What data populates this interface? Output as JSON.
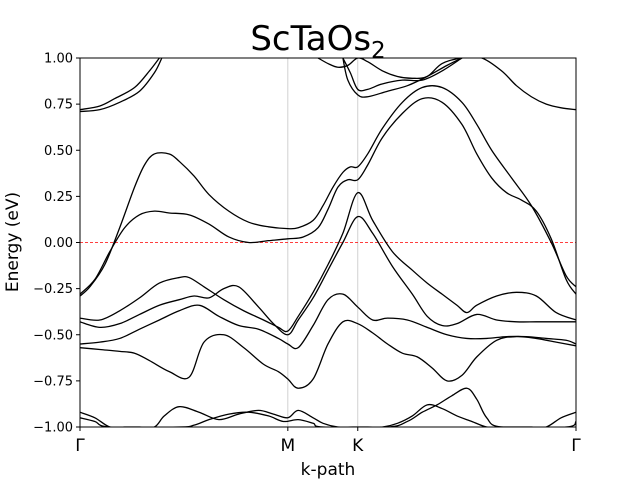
{
  "chart_data": {
    "type": "line",
    "title": "ScTaOs",
    "title_subscript": "2",
    "xlabel": "k-path",
    "ylabel": "Energy (eV)",
    "ylim": [
      -1.0,
      1.0
    ],
    "xlim": [
      0,
      1
    ],
    "yticks": [
      -1.0,
      -0.75,
      -0.5,
      -0.25,
      0.0,
      0.25,
      0.5,
      0.75,
      1.0
    ],
    "ytick_labels": [
      "−1.00",
      "−0.75",
      "−0.50",
      "−0.25",
      "0.00",
      "0.25",
      "0.50",
      "0.75",
      "1.00"
    ],
    "kpoints": [
      {
        "label": "Γ",
        "x": 0.0
      },
      {
        "label": "M",
        "x": 0.419
      },
      {
        "label": "K",
        "x": 0.56
      },
      {
        "label": "Γ",
        "x": 1.0
      }
    ],
    "fermi_level": 0.0,
    "line_color": "#000000",
    "fermi_color": "#ff0000",
    "series": [
      {
        "x": [
          0,
          0.04,
          0.07,
          0.11,
          0.14,
          0.16
        ],
        "values": [
          0.72,
          0.74,
          0.78,
          0.84,
          0.93,
          1.0
        ]
      },
      {
        "x": [
          0,
          0.04,
          0.08,
          0.12,
          0.15,
          0.165
        ],
        "values": [
          0.71,
          0.72,
          0.76,
          0.82,
          0.92,
          1.0
        ]
      },
      {
        "x": [
          0,
          0.02,
          0.05,
          0.08,
          0.11,
          0.13,
          0.15,
          0.18,
          0.2,
          0.23,
          0.26,
          0.3,
          0.34,
          0.38,
          0.419,
          0.44,
          0.47,
          0.49,
          0.51,
          0.53,
          0.545,
          0.56,
          0.58,
          0.61,
          0.65,
          0.69,
          0.73,
          0.77,
          0.8,
          0.83,
          0.87,
          0.91,
          0.95,
          0.98,
          1.0
        ],
        "values": [
          -0.29,
          -0.24,
          -0.12,
          0.08,
          0.3,
          0.42,
          0.48,
          0.48,
          0.44,
          0.36,
          0.26,
          0.17,
          0.11,
          0.085,
          0.075,
          0.08,
          0.12,
          0.2,
          0.3,
          0.38,
          0.41,
          0.41,
          0.48,
          0.62,
          0.76,
          0.84,
          0.84,
          0.76,
          0.64,
          0.5,
          0.35,
          0.2,
          0.0,
          -0.18,
          -0.24
        ]
      },
      {
        "x": [
          0,
          0.03,
          0.06,
          0.09,
          0.12,
          0.15,
          0.18,
          0.22,
          0.26,
          0.3,
          0.34,
          0.38,
          0.419,
          0.45,
          0.48,
          0.5,
          0.52,
          0.54,
          0.56,
          0.58,
          0.61,
          0.65,
          0.69,
          0.73,
          0.77,
          0.8,
          0.83,
          0.86,
          0.89,
          0.92,
          0.95,
          0.98,
          1.0
        ],
        "values": [
          -0.28,
          -0.2,
          -0.05,
          0.08,
          0.15,
          0.17,
          0.16,
          0.15,
          0.1,
          0.03,
          0.0,
          0.01,
          0.02,
          0.03,
          0.08,
          0.18,
          0.3,
          0.34,
          0.34,
          0.42,
          0.57,
          0.7,
          0.78,
          0.76,
          0.64,
          0.48,
          0.35,
          0.27,
          0.23,
          0.17,
          0.02,
          -0.2,
          -0.28
        ]
      },
      {
        "x": [
          0,
          0.04,
          0.08,
          0.12,
          0.16,
          0.2,
          0.22,
          0.25,
          0.29,
          0.33,
          0.37,
          0.4,
          0.419,
          0.44,
          0.47,
          0.5,
          0.53,
          0.56,
          0.59,
          0.63,
          0.67,
          0.7,
          0.73,
          0.76,
          0.78,
          0.8,
          0.84,
          0.88,
          0.92,
          0.96,
          1.0
        ],
        "values": [
          -0.41,
          -0.42,
          -0.37,
          -0.3,
          -0.22,
          -0.19,
          -0.19,
          -0.24,
          -0.31,
          -0.37,
          -0.42,
          -0.46,
          -0.48,
          -0.4,
          -0.27,
          -0.12,
          0.05,
          0.27,
          0.12,
          -0.05,
          -0.15,
          -0.22,
          -0.28,
          -0.34,
          -0.38,
          -0.34,
          -0.29,
          -0.27,
          -0.29,
          -0.38,
          -0.42
        ]
      },
      {
        "x": [
          0,
          0.04,
          0.08,
          0.12,
          0.16,
          0.2,
          0.23,
          0.26,
          0.29,
          0.32,
          0.36,
          0.39,
          0.419,
          0.44,
          0.47,
          0.5,
          0.53,
          0.56,
          0.59,
          0.63,
          0.67,
          0.7,
          0.73,
          0.76,
          0.8,
          0.84,
          0.88,
          0.92,
          0.96,
          1.0
        ],
        "values": [
          -0.43,
          -0.46,
          -0.44,
          -0.39,
          -0.34,
          -0.31,
          -0.29,
          -0.3,
          -0.25,
          -0.24,
          -0.35,
          -0.44,
          -0.5,
          -0.42,
          -0.3,
          -0.15,
          0.0,
          0.14,
          0.05,
          -0.13,
          -0.28,
          -0.4,
          -0.45,
          -0.44,
          -0.39,
          -0.42,
          -0.43,
          -0.43,
          -0.43,
          -0.43
        ]
      },
      {
        "x": [
          0,
          0.04,
          0.08,
          0.12,
          0.16,
          0.2,
          0.24,
          0.28,
          0.32,
          0.36,
          0.4,
          0.419,
          0.44,
          0.47,
          0.5,
          0.53,
          0.56,
          0.59,
          0.62,
          0.66,
          0.7,
          0.74,
          0.78,
          0.82,
          0.86,
          0.9,
          0.94,
          0.98,
          1.0
        ],
        "values": [
          -0.55,
          -0.54,
          -0.52,
          -0.47,
          -0.42,
          -0.37,
          -0.34,
          -0.4,
          -0.45,
          -0.47,
          -0.52,
          -0.55,
          -0.57,
          -0.45,
          -0.31,
          -0.28,
          -0.35,
          -0.42,
          -0.41,
          -0.42,
          -0.46,
          -0.5,
          -0.52,
          -0.52,
          -0.51,
          -0.51,
          -0.52,
          -0.53,
          -0.55
        ]
      },
      {
        "x": [
          0,
          0.04,
          0.08,
          0.11,
          0.14,
          0.18,
          0.22,
          0.25,
          0.29,
          0.33,
          0.37,
          0.4,
          0.419,
          0.44,
          0.47,
          0.5,
          0.53,
          0.56,
          0.59,
          0.62,
          0.65,
          0.68,
          0.71,
          0.74,
          0.77,
          0.8,
          0.84,
          0.88,
          0.92,
          0.96,
          1.0
        ],
        "values": [
          -0.57,
          -0.58,
          -0.59,
          -0.6,
          -0.64,
          -0.7,
          -0.73,
          -0.54,
          -0.5,
          -0.57,
          -0.66,
          -0.7,
          -0.74,
          -0.79,
          -0.74,
          -0.55,
          -0.43,
          -0.44,
          -0.49,
          -0.55,
          -0.6,
          -0.62,
          -0.68,
          -0.75,
          -0.72,
          -0.62,
          -0.53,
          -0.51,
          -0.52,
          -0.54,
          -0.56
        ]
      },
      {
        "x": [
          0,
          0.03,
          0.06,
          0.09,
          0.12,
          0.15,
          0.17,
          0.2,
          0.24,
          0.28,
          0.32,
          0.36,
          0.39,
          0.419,
          0.44,
          0.47,
          0.49,
          0.52,
          0.55,
          0.58,
          0.61,
          0.64,
          0.67,
          0.7,
          0.73,
          0.76,
          0.79,
          0.82,
          0.85,
          0.88,
          0.91,
          0.94,
          0.97,
          1.0
        ],
        "values": [
          -0.92,
          -0.95,
          -1.0,
          -1.0,
          -1.0,
          -1.0,
          -0.94,
          -0.89,
          -0.92,
          -0.96,
          -0.93,
          -0.91,
          -0.93,
          -0.95,
          -0.91,
          -0.95,
          -0.98,
          -1.0,
          -1.0,
          -1.0,
          -1.0,
          -0.98,
          -0.94,
          -0.88,
          -0.9,
          -0.94,
          -0.97,
          -1.0,
          -1.0,
          -1.0,
          -1.0,
          -1.0,
          -0.95,
          -0.92
        ]
      },
      {
        "x": [
          0,
          0.03,
          0.06,
          0.2,
          0.23,
          0.26,
          0.3,
          0.34,
          0.38,
          0.41,
          0.44,
          0.47,
          0.49,
          0.62,
          0.66,
          0.69,
          0.72,
          0.75,
          0.78,
          0.8,
          0.82,
          0.85,
          0.98,
          1.0
        ],
        "values": [
          -0.95,
          -0.97,
          -1.0,
          -1.0,
          -0.99,
          -0.96,
          -0.93,
          -0.92,
          -0.94,
          -0.97,
          -0.96,
          -0.98,
          -1.0,
          -1.0,
          -0.97,
          -0.92,
          -0.88,
          -0.83,
          -0.79,
          -0.85,
          -0.95,
          -1.0,
          -1.0,
          -0.97
        ]
      },
      {
        "x": [
          0.48,
          0.5,
          0.52,
          0.54,
          0.56,
          0.58,
          0.61,
          0.64,
          0.67,
          0.7,
          0.73,
          0.77,
          0.81,
          0.85,
          0.88,
          0.91,
          0.94,
          0.97,
          1.0
        ],
        "values": [
          1.0,
          0.97,
          0.95,
          0.96,
          1.0,
          0.98,
          0.93,
          0.9,
          0.89,
          0.9,
          0.97,
          1.0,
          1.0,
          0.93,
          0.85,
          0.79,
          0.75,
          0.73,
          0.72
        ]
      },
      {
        "x": [
          0.53,
          0.545,
          0.56,
          0.58,
          0.61,
          0.65,
          0.69,
          0.73,
          0.77
        ],
        "values": [
          1.0,
          0.92,
          0.83,
          0.83,
          0.86,
          0.88,
          0.88,
          0.93,
          1.0
        ]
      },
      {
        "x": [
          0.53,
          0.54,
          0.56,
          0.58,
          0.62,
          0.66,
          0.7,
          0.74,
          0.77
        ],
        "values": [
          1.0,
          0.88,
          0.8,
          0.79,
          0.82,
          0.85,
          0.9,
          0.96,
          1.0
        ]
      }
    ]
  }
}
